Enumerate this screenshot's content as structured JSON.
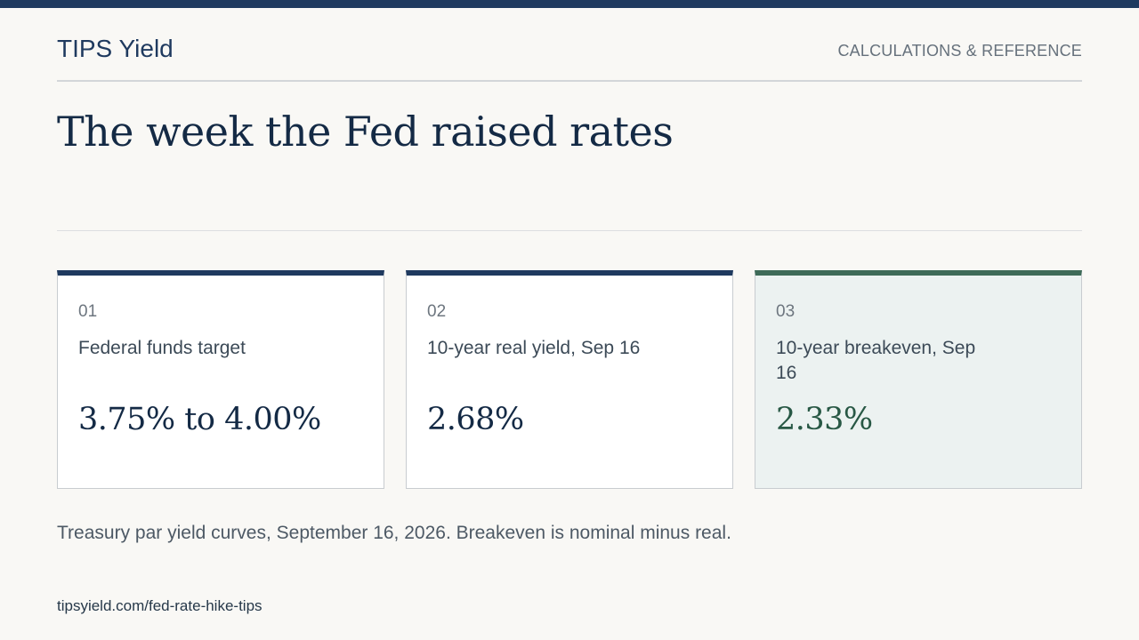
{
  "header": {
    "brand": "TIPS Yield",
    "section": "CALCULATIONS & REFERENCE"
  },
  "headline": "The week the Fed raised rates",
  "cards": [
    {
      "number": "01",
      "label": "Federal funds target",
      "value": "3.75% to 4.00%"
    },
    {
      "number": "02",
      "label": "10-year real yield, Sep 16",
      "value": "2.68%"
    },
    {
      "number": "03",
      "label": "10-year breakeven, Sep 16",
      "value": "2.33%"
    }
  ],
  "note": "Treasury par yield curves, September 16, 2026. Breakeven is nominal minus real.",
  "footer": {
    "url": "tipsyield.com/fed-rate-hike-tips"
  },
  "colors": {
    "accent_navy": "#1f3a5f",
    "accent_green": "#3e6b58",
    "background": "#f9f8f5"
  }
}
